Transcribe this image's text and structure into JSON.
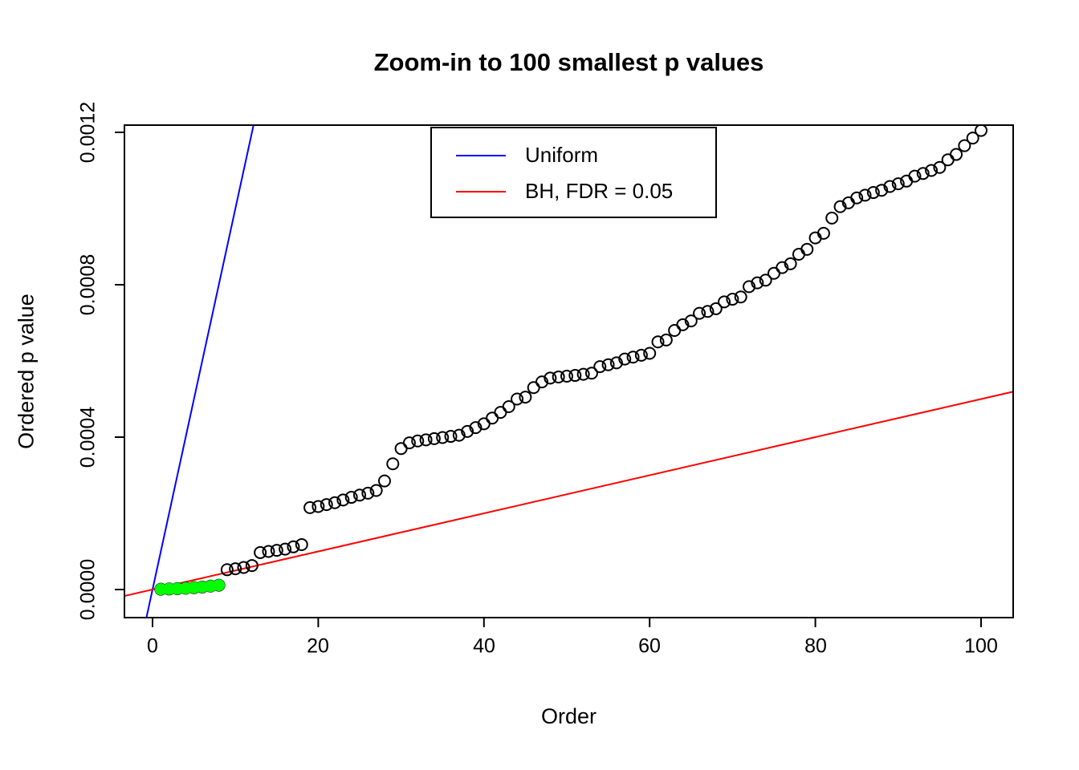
{
  "page": {
    "background": "#ffffff"
  },
  "chart_data": {
    "type": "scatter",
    "title": "Zoom-in to 100 smallest p values",
    "xlabel": "Order",
    "ylabel": "Ordered p value",
    "x_tick_labels": [
      "0",
      "20",
      "40",
      "60",
      "80",
      "100"
    ],
    "y_tick_labels": [
      "0.0000",
      "0.0004",
      "0.0008",
      "0.0012"
    ],
    "x_ticks": [
      0,
      20,
      40,
      60,
      80,
      100
    ],
    "y_ticks": [
      0,
      0.0004,
      0.0008,
      0.0012
    ],
    "xlim": [
      -3.4,
      104
    ],
    "ylim": [
      -7.4e-05,
      0.00122
    ],
    "grid": false,
    "points": {
      "x": [
        1,
        2,
        3,
        4,
        5,
        6,
        7,
        8,
        9,
        10,
        11,
        12,
        13,
        14,
        15,
        16,
        17,
        18,
        19,
        20,
        21,
        22,
        23,
        24,
        25,
        26,
        27,
        28,
        29,
        30,
        31,
        32,
        33,
        34,
        35,
        36,
        37,
        38,
        39,
        40,
        41,
        42,
        43,
        44,
        45,
        46,
        47,
        48,
        49,
        50,
        51,
        52,
        53,
        54,
        55,
        56,
        57,
        58,
        59,
        60,
        61,
        62,
        63,
        64,
        65,
        66,
        67,
        68,
        69,
        70,
        71,
        72,
        73,
        74,
        75,
        76,
        77,
        78,
        79,
        80,
        81,
        82,
        83,
        84,
        85,
        86,
        87,
        88,
        89,
        90,
        91,
        92,
        93,
        94,
        95,
        96,
        97,
        98,
        99,
        100
      ],
      "y": [
        8e-07,
        1.5e-06,
        2.3e-06,
        3.4e-06,
        4.9e-06,
        6.7e-06,
        8.9e-06,
        1.14e-05,
        5.2e-05,
        5.45e-05,
        5.8e-05,
        6.3e-05,
        9.7e-05,
        0.0001,
        0.000103,
        0.000106,
        0.000112,
        0.000118,
        0.000215,
        0.000218,
        0.000223,
        0.000228,
        0.000235,
        0.000242,
        0.000248,
        0.000253,
        0.00026,
        0.000285,
        0.00033,
        0.00037,
        0.000385,
        0.00039,
        0.000393,
        0.000396,
        0.000399,
        0.000402,
        0.000405,
        0.000415,
        0.000425,
        0.000435,
        0.00045,
        0.000465,
        0.00048,
        0.0005,
        0.000505,
        0.00053,
        0.000545,
        0.000555,
        0.000558,
        0.00056,
        0.000562,
        0.000565,
        0.000568,
        0.000585,
        0.00059,
        0.000595,
        0.000605,
        0.00061,
        0.000615,
        0.00062,
        0.00065,
        0.000655,
        0.00068,
        0.000695,
        0.000705,
        0.000725,
        0.00073,
        0.000737,
        0.000755,
        0.000762,
        0.000768,
        0.000795,
        0.000805,
        0.000812,
        0.00083,
        0.000845,
        0.000855,
        0.00088,
        0.000893,
        0.000923,
        0.000935,
        0.000975,
        0.001005,
        0.001015,
        0.001028,
        0.001035,
        0.001042,
        0.001048,
        0.001058,
        0.001065,
        0.001072,
        0.001085,
        0.001092,
        0.0011,
        0.001108,
        0.001128,
        0.001142,
        0.001165,
        0.001185,
        0.001205
      ],
      "significant_count": 8,
      "point_color": "#000000",
      "significant_color": "#00FF00"
    },
    "lines": [
      {
        "name": "Uniform",
        "color": "#0000FF",
        "slope": 0.0001,
        "intercept": 0
      },
      {
        "name": "BH, FDR = 0.05",
        "color": "#FF0000",
        "slope": 5e-06,
        "intercept": 0
      }
    ],
    "legend": {
      "position": "top-center",
      "entries": [
        {
          "label": "Uniform",
          "color": "#0000FF"
        },
        {
          "label": "BH, FDR = 0.05",
          "color": "#FF0000"
        }
      ]
    }
  }
}
